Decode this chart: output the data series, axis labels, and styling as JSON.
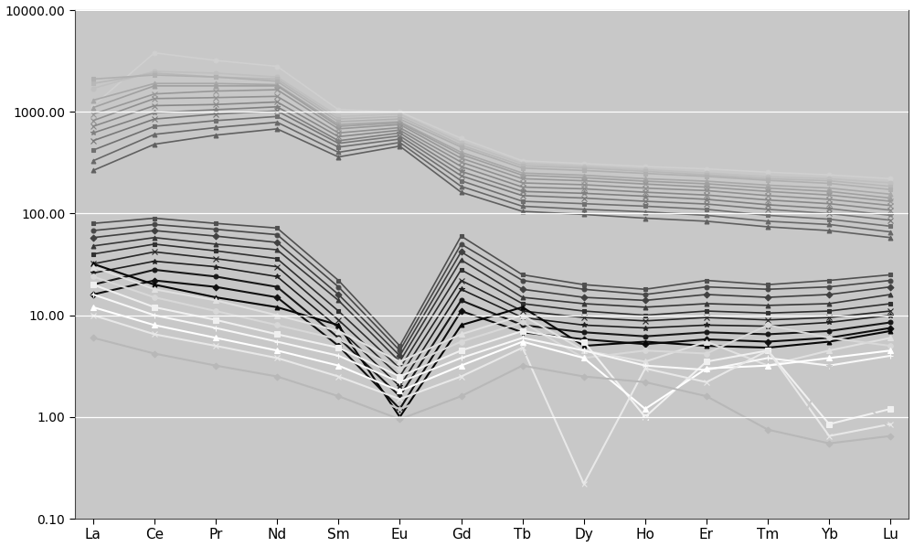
{
  "elements": [
    "La",
    "Ce",
    "Pr",
    "Nd",
    "Sm",
    "Eu",
    "Gd",
    "Tb",
    "Dy",
    "Ho",
    "Er",
    "Tm",
    "Yb",
    "Lu"
  ],
  "ylim": [
    0.1,
    10000
  ],
  "background_color": "#c8c8c8",
  "outer_bg": "#ffffff",
  "series": [
    {
      "color": "#d0d0d0",
      "marker": "o",
      "lw": 1.2,
      "ms": 3.5,
      "values": [
        1150,
        3800,
        3200,
        2800,
        1050,
        1000,
        550,
        330,
        310,
        290,
        275,
        255,
        240,
        220
      ]
    },
    {
      "color": "#c0c0c0",
      "marker": "o",
      "lw": 1.2,
      "ms": 3.5,
      "values": [
        1700,
        2500,
        2400,
        2200,
        900,
        950,
        500,
        310,
        290,
        270,
        250,
        230,
        220,
        200
      ]
    },
    {
      "color": "#b8b8b8",
      "marker": "s",
      "lw": 1.2,
      "ms": 3.5,
      "values": [
        1900,
        2400,
        2200,
        2100,
        850,
        900,
        470,
        295,
        280,
        260,
        240,
        220,
        210,
        185
      ]
    },
    {
      "color": "#b0b0b0",
      "marker": "s",
      "lw": 1.2,
      "ms": 3.5,
      "values": [
        2100,
        2300,
        2200,
        2000,
        800,
        850,
        450,
        280,
        265,
        248,
        232,
        212,
        198,
        172
      ]
    },
    {
      "color": "#a8a8a8",
      "marker": "^",
      "lw": 1.2,
      "ms": 3.5,
      "values": [
        1300,
        1900,
        1900,
        1850,
        750,
        800,
        400,
        250,
        238,
        220,
        208,
        190,
        178,
        155
      ]
    },
    {
      "color": "#a0a0a0",
      "marker": "^",
      "lw": 1.2,
      "ms": 3.5,
      "values": [
        1100,
        1800,
        1800,
        1800,
        720,
        780,
        380,
        238,
        225,
        208,
        196,
        178,
        165,
        142
      ]
    },
    {
      "color": "#989898",
      "marker": "x",
      "lw": 1.2,
      "ms": 4,
      "values": [
        950,
        1500,
        1600,
        1650,
        680,
        750,
        350,
        220,
        210,
        195,
        182,
        165,
        152,
        132
      ]
    },
    {
      "color": "#909090",
      "marker": "x",
      "lw": 1.2,
      "ms": 4,
      "values": [
        820,
        1350,
        1380,
        1420,
        620,
        700,
        320,
        200,
        192,
        178,
        168,
        150,
        138,
        120
      ]
    },
    {
      "color": "#888888",
      "marker": "x",
      "lw": 1.2,
      "ms": 4,
      "values": [
        720,
        1150,
        1180,
        1250,
        570,
        660,
        290,
        182,
        175,
        162,
        152,
        136,
        125,
        108
      ]
    },
    {
      "color": "#808080",
      "marker": "*",
      "lw": 1.2,
      "ms": 4,
      "values": [
        620,
        980,
        1050,
        1120,
        520,
        620,
        260,
        165,
        158,
        148,
        138,
        122,
        112,
        96
      ]
    },
    {
      "color": "#787878",
      "marker": "x",
      "lw": 1.2,
      "ms": 4,
      "values": [
        520,
        850,
        950,
        1020,
        490,
        580,
        235,
        150,
        142,
        132,
        124,
        110,
        100,
        86
      ]
    },
    {
      "color": "#707070",
      "marker": "s",
      "lw": 1.2,
      "ms": 3.5,
      "values": [
        420,
        720,
        820,
        900,
        450,
        540,
        210,
        132,
        125,
        118,
        110,
        96,
        88,
        75
      ]
    },
    {
      "color": "#686868",
      "marker": "^",
      "lw": 1.2,
      "ms": 3.5,
      "values": [
        330,
        600,
        700,
        790,
        400,
        500,
        185,
        118,
        110,
        104,
        96,
        84,
        78,
        66
      ]
    },
    {
      "color": "#606060",
      "marker": "^",
      "lw": 1.2,
      "ms": 3.5,
      "values": [
        265,
        480,
        590,
        680,
        360,
        460,
        162,
        105,
        98,
        90,
        84,
        74,
        68,
        58
      ]
    },
    {
      "color": "#505050",
      "marker": "s",
      "lw": 1.2,
      "ms": 3.5,
      "values": [
        80,
        90,
        80,
        72,
        22,
        5,
        60,
        25,
        20,
        18,
        22,
        20,
        22,
        25
      ]
    },
    {
      "color": "#484848",
      "marker": "o",
      "lw": 1.2,
      "ms": 3.5,
      "values": [
        68,
        78,
        70,
        62,
        19,
        4.5,
        50,
        22,
        18,
        16,
        19,
        18,
        19,
        22
      ]
    },
    {
      "color": "#404040",
      "marker": "D",
      "lw": 1.2,
      "ms": 3.5,
      "values": [
        58,
        68,
        60,
        52,
        16,
        4.0,
        42,
        18,
        15,
        14,
        16,
        15,
        16,
        19
      ]
    },
    {
      "color": "#383838",
      "marker": "^",
      "lw": 1.2,
      "ms": 3.5,
      "values": [
        48,
        58,
        50,
        44,
        14,
        3.5,
        35,
        15,
        13,
        12,
        13,
        12.5,
        13,
        16
      ]
    },
    {
      "color": "#303030",
      "marker": "s",
      "lw": 1.2,
      "ms": 3.5,
      "values": [
        40,
        50,
        43,
        36,
        11,
        3.0,
        28,
        13,
        11,
        10,
        11,
        10.5,
        11,
        13
      ]
    },
    {
      "color": "#282828",
      "marker": "x",
      "lw": 1.2,
      "ms": 4,
      "values": [
        32,
        42,
        36,
        30,
        9,
        2.5,
        22,
        11,
        9.5,
        8.8,
        9.5,
        9,
        9.5,
        11
      ]
    },
    {
      "color": "#202020",
      "marker": "*",
      "lw": 1.2,
      "ms": 4,
      "values": [
        26,
        34,
        30,
        24,
        7.5,
        2.0,
        18,
        9.5,
        8,
        7.5,
        8,
        7.8,
        8.5,
        10
      ]
    },
    {
      "color": "#181818",
      "marker": "o",
      "lw": 1.5,
      "ms": 3.5,
      "values": [
        20,
        28,
        24,
        19,
        6,
        1.6,
        14,
        8,
        6.8,
        6.2,
        6.8,
        6.5,
        7,
        8.5
      ]
    },
    {
      "color": "#101010",
      "marker": "D",
      "lw": 1.5,
      "ms": 3.5,
      "values": [
        16,
        22,
        19,
        15,
        5,
        1.2,
        11,
        6.8,
        5.8,
        5.2,
        5.8,
        5.5,
        6,
        7.5
      ]
    },
    {
      "color": "#080808",
      "marker": "^",
      "lw": 1.5,
      "ms": 3.5,
      "values": [
        32,
        20,
        15,
        12,
        8,
        1.0,
        8,
        12,
        5,
        5.5,
        5,
        4.8,
        5.5,
        7
      ]
    },
    {
      "color": "#e0e0e0",
      "marker": "^",
      "lw": 1.5,
      "ms": 4,
      "values": [
        30,
        18,
        14,
        10,
        7,
        3.5,
        6.5,
        10,
        4.5,
        3.5,
        5.5,
        3.2,
        4.5,
        6
      ]
    },
    {
      "color": "#d8d8d8",
      "marker": "o",
      "lw": 1.5,
      "ms": 4,
      "values": [
        24,
        15,
        11,
        8,
        5.8,
        3.0,
        5.5,
        8.5,
        3.8,
        4.5,
        4.2,
        8,
        6,
        5
      ]
    },
    {
      "color": "#f0f0f0",
      "marker": "s",
      "lw": 1.5,
      "ms": 4,
      "values": [
        20,
        12,
        9,
        6.5,
        4.8,
        2.5,
        4.5,
        7,
        5.5,
        1.0,
        3.5,
        4.5,
        0.85,
        1.2
      ]
    },
    {
      "color": "#f8f8f8",
      "marker": "+",
      "lw": 1.5,
      "ms": 5,
      "values": [
        16,
        10,
        7.5,
        5.5,
        4.0,
        2.2,
        3.8,
        6,
        4.5,
        3.2,
        2.9,
        3.8,
        3.2,
        4
      ]
    },
    {
      "color": "#ffffff",
      "marker": "^",
      "lw": 1.5,
      "ms": 4,
      "values": [
        12,
        8,
        6,
        4.5,
        3.2,
        1.8,
        3.2,
        5.5,
        3.8,
        1.2,
        3.0,
        3.2,
        3.8,
        4.5
      ]
    },
    {
      "color": "#e8e8e8",
      "marker": "x",
      "lw": 1.5,
      "ms": 5,
      "values": [
        10,
        6.5,
        5,
        3.8,
        2.5,
        1.5,
        2.5,
        4.8,
        0.22,
        3.0,
        2.2,
        4.5,
        0.65,
        0.85
      ]
    },
    {
      "color": "#c8c8c8",
      "marker": "*",
      "lw": 1.5,
      "ms": 5,
      "values": [
        8,
        5.2,
        4,
        3.2,
        2.0,
        1.2,
        2.0,
        4.0,
        0.18,
        0.95,
        1.9,
        0.21,
        3.2,
        0.75
      ]
    },
    {
      "color": "#b8b8b8",
      "marker": "D",
      "lw": 1.5,
      "ms": 3.5,
      "values": [
        6,
        4.2,
        3.2,
        2.5,
        1.6,
        0.95,
        1.6,
        3.2,
        2.5,
        2.2,
        1.6,
        0.75,
        0.55,
        0.65
      ]
    }
  ]
}
